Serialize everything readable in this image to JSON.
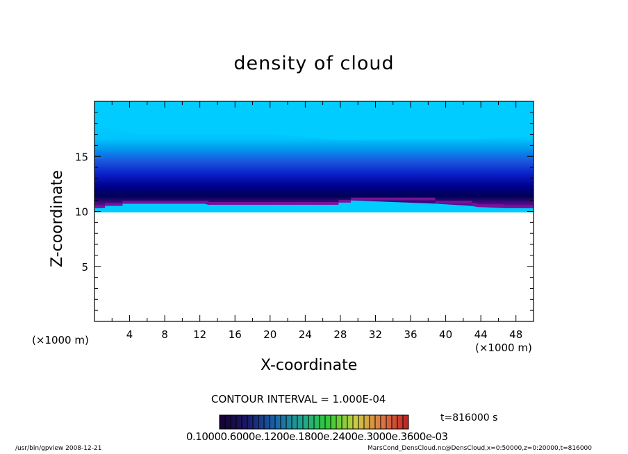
{
  "chart_data": {
    "type": "contour",
    "title": "density of cloud",
    "xlabel": "X-coordinate",
    "ylabel": "Z-coordinate",
    "x_unit_left": "(×1000 m)",
    "x_unit_right": "(×1000 m)",
    "xlim": [
      0,
      50
    ],
    "ylim": [
      0,
      20
    ],
    "x_ticks": [
      4,
      8,
      12,
      16,
      20,
      24,
      28,
      32,
      36,
      40,
      44,
      48
    ],
    "y_ticks": [
      5,
      10,
      15
    ],
    "cloud_base_profile": {
      "x": [
        0,
        1.2,
        3.2,
        12.5,
        13,
        27.8,
        29.2,
        38.8,
        43,
        43.6,
        46.6,
        50
      ],
      "z": [
        10.3,
        10.5,
        10.7,
        10.7,
        10.6,
        10.8,
        11.0,
        10.7,
        10.5,
        10.4,
        10.3,
        10.3
      ]
    },
    "band_top_profile": {
      "x": [
        0,
        5,
        12,
        20,
        28,
        36,
        44,
        50
      ],
      "z": [
        18.0,
        17.0,
        17.0,
        17.0,
        16.5,
        16.6,
        16.6,
        16.8
      ]
    },
    "contour_interval": "CONTOUR INTERVAL = 1.000E-04",
    "time_label": "t=816000 s",
    "colorbar_labels": "0.10000.6000e.1200e.1800e.2400e.3000e.3600e-03"
  },
  "footer": {
    "left": "/usr/bin/gpview   2008-12-21",
    "right": "MarsCond_DensCloud.nc@DensCloud,x=0:50000,z=0:20000,t=816000"
  },
  "colors": {
    "sky_cyan": "#00ccff",
    "deep_blue": "#00008b",
    "navy": "#000050",
    "purple_base": "#6a0d8f",
    "colorbar_border": "#000000"
  }
}
